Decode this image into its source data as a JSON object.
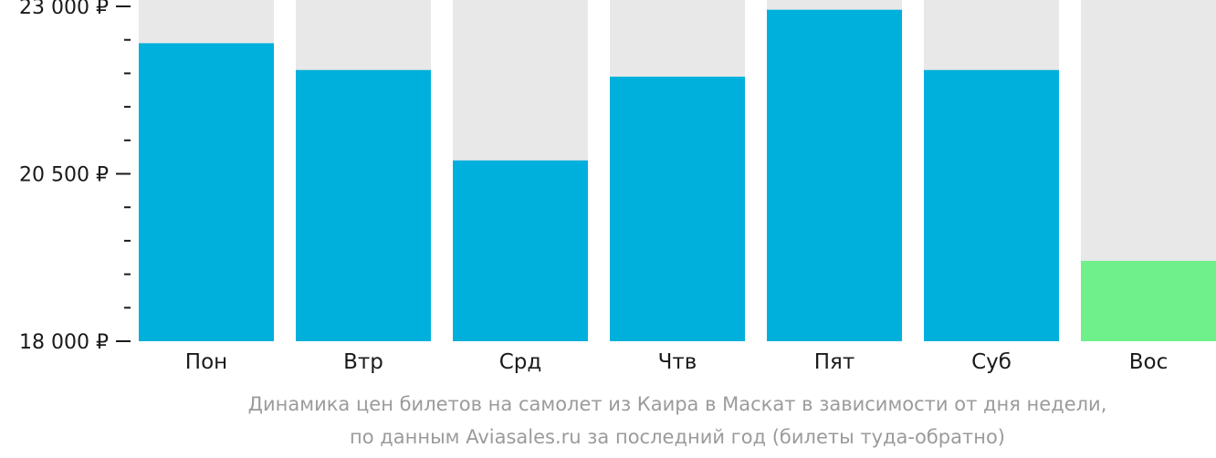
{
  "chart_data": {
    "type": "bar",
    "categories": [
      "Пон",
      "Втр",
      "Срд",
      "Чтв",
      "Пят",
      "Суб",
      "Вос"
    ],
    "values": [
      22450,
      22050,
      20700,
      21950,
      22950,
      22050,
      19200
    ],
    "ylim": [
      18000,
      23000
    ],
    "yticks": [
      18000,
      20500,
      23000
    ],
    "ytick_labels": [
      "18 000 ₽",
      "20 500 ₽",
      "23 000 ₽"
    ],
    "minor_ticks_per_interval": 5,
    "grid": false,
    "legend": "none",
    "colors": {
      "bar": "#00b0dc",
      "bar_lowest": "#6ff08a",
      "background_bar": "#e8e8e8",
      "axis": "#1a1a1a",
      "caption": "#9b9b9b"
    },
    "lowest_index": 6
  },
  "caption": {
    "line1": "Динамика цен билетов на самолет из Каира в Маскат в зависимости от дня недели,",
    "line2": "по данным Aviasales.ru за последний год (билеты туда-обратно)"
  }
}
